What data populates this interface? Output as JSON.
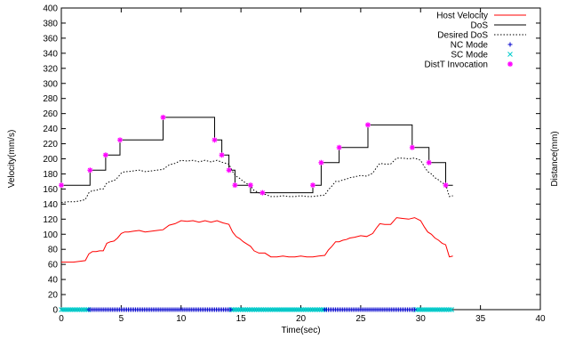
{
  "chart_data": {
    "type": "line",
    "title": "",
    "xlabel": "Time(sec)",
    "ylabel": "Velocity(mm/s)",
    "y2label": "Distance(mm)",
    "xlim": [
      0,
      40
    ],
    "ylim": [
      0,
      400
    ],
    "x_ticks": [
      0,
      5,
      10,
      15,
      20,
      25,
      30,
      35,
      40
    ],
    "y_ticks": [
      0,
      20,
      40,
      60,
      80,
      100,
      120,
      140,
      160,
      180,
      200,
      220,
      240,
      260,
      280,
      300,
      320,
      340,
      360,
      380,
      400
    ],
    "grid": false,
    "legend_position": "top-right",
    "series": [
      {
        "name": "Host Velocity",
        "style": "line",
        "color": "#ff0000",
        "x": [
          0,
          0.5,
          1.0,
          1.5,
          2.0,
          2.3,
          2.6,
          2.9,
          3.2,
          3.5,
          3.8,
          4.1,
          4.4,
          4.7,
          5.0,
          5.3,
          5.6,
          6.0,
          6.5,
          7.0,
          7.5,
          8.0,
          8.5,
          9.0,
          9.5,
          10.0,
          10.5,
          11.0,
          11.5,
          12.0,
          12.5,
          13.0,
          13.5,
          14.0,
          14.3,
          14.6,
          14.9,
          15.2,
          15.5,
          15.8,
          16.1,
          16.5,
          17.0,
          17.5,
          18.0,
          18.5,
          19.0,
          19.5,
          20.0,
          20.5,
          21.0,
          21.5,
          22.0,
          22.3,
          22.6,
          22.9,
          23.2,
          23.5,
          23.8,
          24.1,
          24.5,
          25.0,
          25.5,
          26.0,
          26.3,
          26.6,
          27.0,
          27.5,
          28.0,
          28.5,
          29.0,
          29.5,
          30.0,
          30.3,
          30.6,
          30.9,
          31.2,
          31.5,
          31.8,
          32.1,
          32.4,
          32.7
        ],
        "values": [
          63,
          63,
          63,
          64,
          65,
          74,
          77,
          77,
          78,
          78,
          88,
          90,
          91,
          95,
          101,
          103,
          103,
          104,
          105,
          103,
          104,
          105,
          106,
          112,
          114,
          118,
          117,
          118,
          116,
          118,
          116,
          118,
          115,
          113,
          103,
          97,
          94,
          90,
          87,
          84,
          78,
          75,
          75,
          70,
          70,
          71,
          70,
          70,
          71,
          70,
          70,
          71,
          72,
          79,
          84,
          90,
          90,
          92,
          93,
          95,
          96,
          98,
          97,
          101,
          108,
          114,
          113,
          113,
          122,
          121,
          120,
          122,
          118,
          110,
          103,
          100,
          95,
          92,
          88,
          86,
          70,
          71
        ]
      },
      {
        "name": "DoS",
        "style": "step",
        "color": "#000000",
        "x": [
          0,
          2.4,
          3.7,
          4.9,
          8.5,
          12.8,
          13.4,
          14.0,
          14.5,
          15.8,
          16.8,
          21.0,
          21.7,
          22.3,
          23.2,
          25.6,
          29.3,
          30.7,
          32.1,
          32.7
        ],
        "values": [
          165,
          185,
          205,
          225,
          255,
          225,
          205,
          185,
          165,
          155,
          155,
          165,
          195,
          195,
          215,
          245,
          215,
          195,
          165,
          165
        ]
      },
      {
        "name": "Desired DoS",
        "style": "dotted",
        "color": "#000000",
        "x": [
          0,
          0.5,
          1.0,
          1.5,
          2.0,
          2.3,
          2.6,
          2.9,
          3.2,
          3.5,
          3.8,
          4.1,
          4.4,
          4.7,
          5.0,
          5.3,
          5.6,
          6.0,
          6.5,
          7.0,
          7.5,
          8.0,
          8.5,
          9.0,
          9.5,
          10.0,
          10.5,
          11.0,
          11.5,
          12.0,
          12.5,
          13.0,
          13.5,
          14.0,
          14.3,
          14.6,
          14.9,
          15.2,
          15.5,
          15.8,
          16.1,
          16.5,
          17.0,
          17.5,
          18.0,
          18.5,
          19.0,
          19.5,
          20.0,
          20.5,
          21.0,
          21.5,
          22.0,
          22.3,
          22.6,
          22.9,
          23.2,
          23.5,
          23.8,
          24.1,
          24.5,
          25.0,
          25.5,
          26.0,
          26.3,
          26.6,
          27.0,
          27.5,
          28.0,
          28.5,
          29.0,
          29.5,
          30.0,
          30.3,
          30.6,
          30.9,
          31.2,
          31.5,
          31.8,
          32.1,
          32.4,
          32.7
        ],
        "values": [
          142,
          143,
          143,
          144,
          146,
          155,
          158,
          158,
          160,
          160,
          168,
          170,
          171,
          175,
          181,
          183,
          183,
          184,
          185,
          183,
          184,
          185,
          186,
          192,
          194,
          198,
          197,
          198,
          196,
          198,
          196,
          198,
          195,
          193,
          183,
          177,
          174,
          170,
          167,
          164,
          158,
          155,
          153,
          150,
          150,
          151,
          150,
          150,
          151,
          150,
          150,
          151,
          152,
          159,
          164,
          170,
          170,
          172,
          173,
          175,
          176,
          178,
          177,
          181,
          188,
          194,
          193,
          193,
          201,
          201,
          200,
          201,
          198,
          190,
          183,
          180,
          175,
          172,
          168,
          166,
          150,
          151
        ]
      },
      {
        "name": "NC Mode",
        "style": "points-plus",
        "color": "#0000cc",
        "x_ranges": [
          [
            2.3,
            14.2
          ],
          [
            22.0,
            29.6
          ]
        ],
        "value": 0
      },
      {
        "name": "SC Mode",
        "style": "points-x",
        "color": "#00cccc",
        "x_ranges": [
          [
            0,
            2.3
          ],
          [
            14.2,
            22.0
          ],
          [
            29.6,
            32.7
          ]
        ],
        "value": 0
      },
      {
        "name": "DistT Invocation",
        "style": "points-star",
        "color": "#ff00ff",
        "x": [
          0,
          2.4,
          3.7,
          4.9,
          8.5,
          12.8,
          13.4,
          14.0,
          14.5,
          15.8,
          16.8,
          21.0,
          21.7,
          23.2,
          25.6,
          29.3,
          30.7,
          32.1
        ],
        "values": [
          165,
          185,
          205,
          225,
          255,
          225,
          205,
          185,
          165,
          165,
          155,
          165,
          195,
          215,
          245,
          215,
          195,
          165
        ]
      }
    ]
  }
}
